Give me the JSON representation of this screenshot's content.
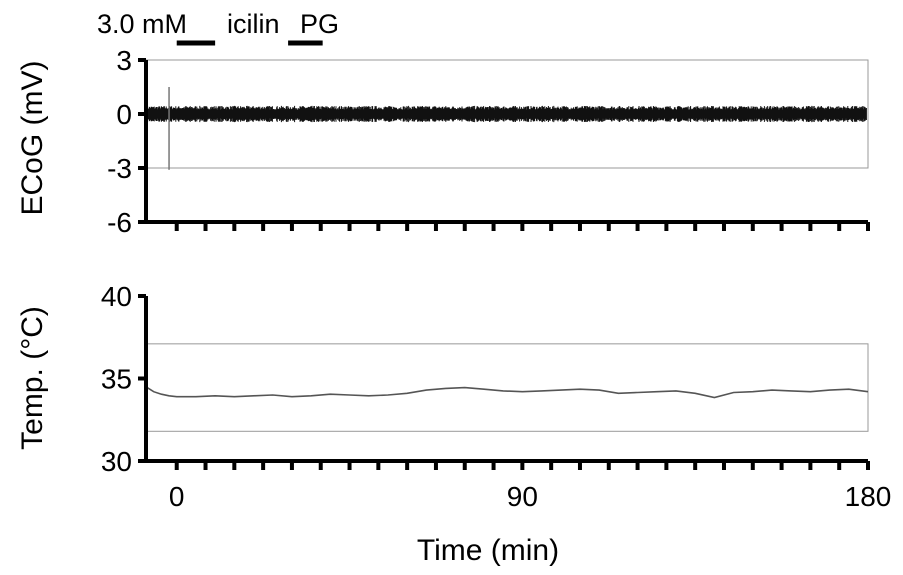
{
  "chart_data": [
    {
      "type": "line",
      "name": "ecog",
      "ylabel": "ECoG (mV)",
      "ylim": [
        -6,
        3
      ],
      "yticks": [
        3,
        0,
        -3,
        -6
      ],
      "xlim": [
        -8,
        180
      ],
      "x_tick_step_min": 7.5,
      "series": [
        {
          "kind": "noise_band",
          "center": 0,
          "approx_amplitude_mV": 0.45,
          "early_transient": {
            "x_min": -2,
            "min_mV": -3.1,
            "max_mV": 1.5
          }
        }
      ],
      "colors": {
        "trace": "#111111",
        "transient": "#777777"
      }
    },
    {
      "type": "line",
      "name": "temperature",
      "ylabel": "Temp. (°C)",
      "ylim": [
        30,
        40
      ],
      "yticks": [
        40,
        35,
        30
      ],
      "xlim": [
        -8,
        180
      ],
      "xticks": [
        0,
        90,
        180
      ],
      "x_tick_step_min": 7.5,
      "xlabel": "Time (min)",
      "series": [
        {
          "x": [
            -8,
            -6,
            -4,
            -2,
            0,
            5,
            10,
            15,
            20,
            25,
            30,
            35,
            40,
            45,
            50,
            55,
            60,
            65,
            70,
            75,
            80,
            85,
            90,
            95,
            100,
            105,
            110,
            115,
            120,
            125,
            130,
            135,
            140,
            145,
            150,
            155,
            160,
            165,
            170,
            175,
            180
          ],
          "y": [
            34.5,
            34.2,
            34.05,
            33.95,
            33.9,
            33.9,
            33.95,
            33.9,
            33.95,
            34.0,
            33.9,
            33.95,
            34.05,
            34.0,
            33.95,
            34.0,
            34.1,
            34.3,
            34.4,
            34.45,
            34.35,
            34.25,
            34.2,
            34.25,
            34.3,
            34.35,
            34.3,
            34.1,
            34.15,
            34.2,
            34.25,
            34.1,
            33.85,
            34.15,
            34.2,
            34.3,
            34.25,
            34.2,
            34.3,
            34.35,
            34.2
          ]
        }
      ],
      "colors": {
        "trace": "#555555"
      }
    }
  ],
  "annotations": {
    "dose": "3.0 mM",
    "drug1": "icilin",
    "drug2": "PG",
    "bar1_min": [
      0,
      10
    ],
    "bar2_min": [
      29,
      38
    ]
  },
  "reference_boxes": {
    "ecog_mV": [
      -3,
      3
    ],
    "temp_C": [
      31.8,
      37.1
    ]
  }
}
